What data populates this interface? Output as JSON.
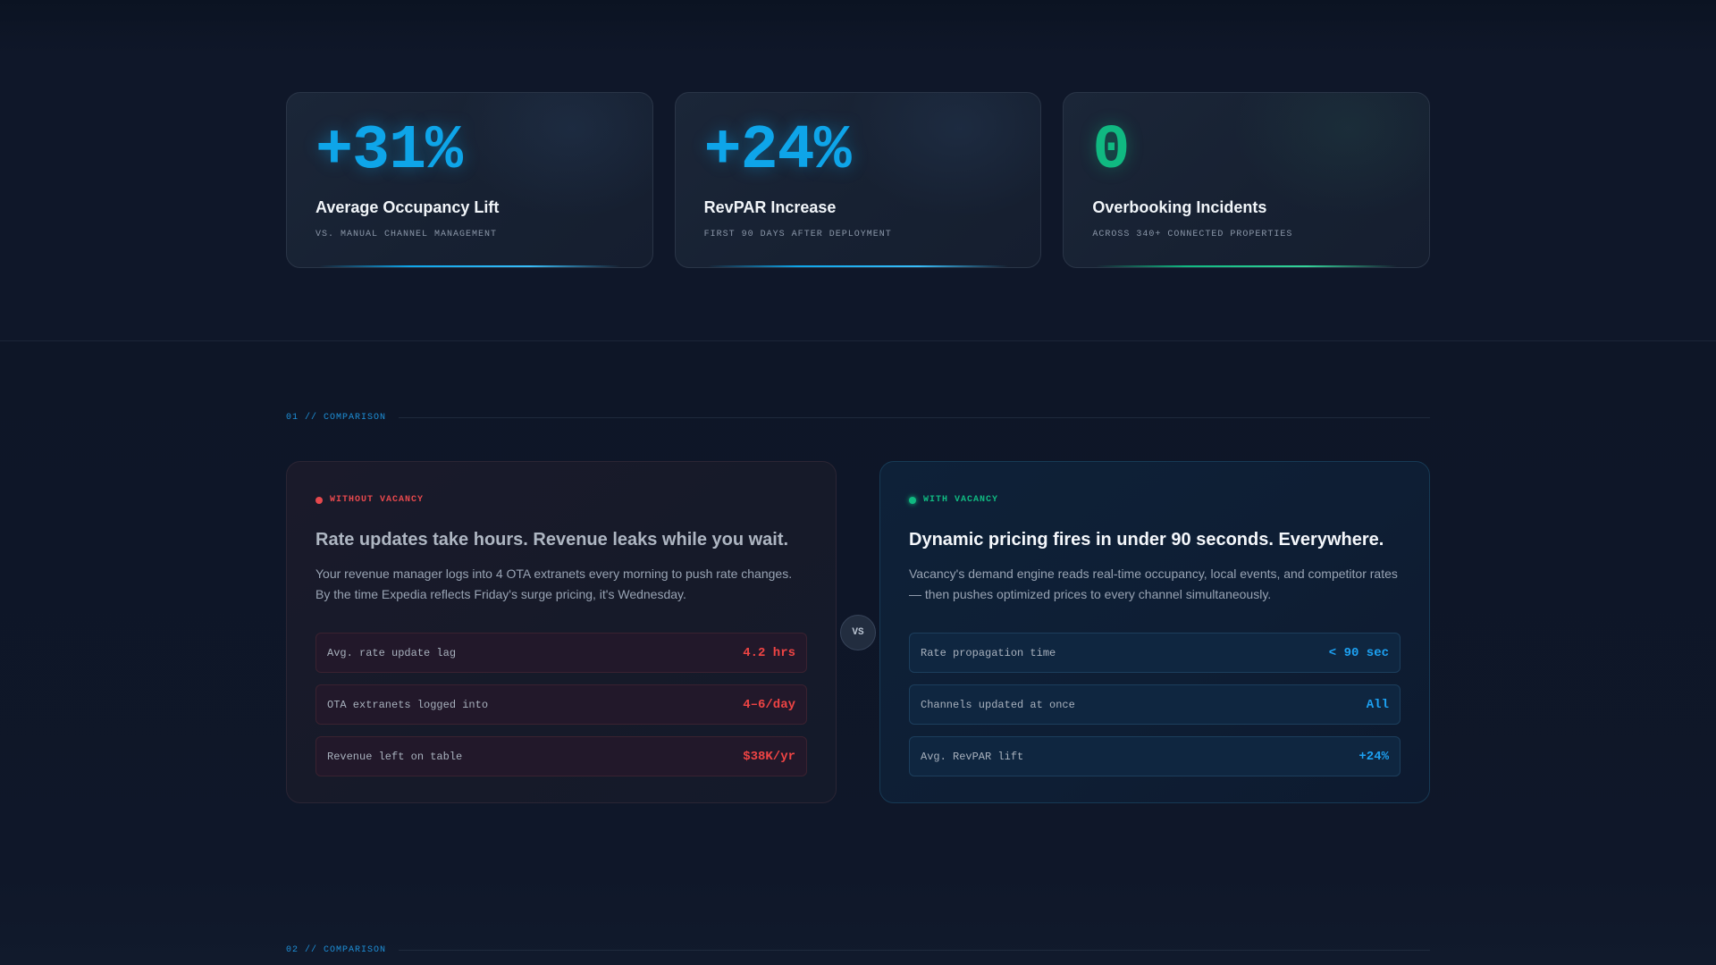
{
  "stats": [
    {
      "value": "+31%",
      "label": "Average Occupancy Lift",
      "sub": "VS. MANUAL CHANNEL MANAGEMENT",
      "accent": "#0ea5e9"
    },
    {
      "value": "+24%",
      "label": "RevPAR Increase",
      "sub": "FIRST 90 DAYS AFTER DEPLOYMENT",
      "accent": "#0ea5e9"
    },
    {
      "value": "0",
      "label": "Overbooking Incidents",
      "sub": "ACROSS 340+ CONNECTED PROPERTIES",
      "accent": "#10b981"
    }
  ],
  "sections": [
    {
      "label": "01 // COMPARISON"
    },
    {
      "label": "02 // COMPARISON"
    }
  ],
  "comparison": {
    "vs_label": "VS",
    "without": {
      "tag": "WITHOUT VACANCY",
      "title": "Rate updates take hours. Revenue leaks while you wait.",
      "body": "Your revenue manager logs into 4 OTA extranets every morning to push rate changes. By the time Expedia reflects Friday's surge pricing, it's Wednesday.",
      "rows": [
        {
          "key": "Avg. rate update lag",
          "value": "4.2 hrs"
        },
        {
          "key": "OTA extranets logged into",
          "value": "4–6/day"
        },
        {
          "key": "Revenue left on table",
          "value": "$38K/yr"
        }
      ]
    },
    "with": {
      "tag": "WITH VACANCY",
      "title": "Dynamic pricing fires in under 90 seconds. Everywhere.",
      "body": "Vacancy's demand engine reads real-time occupancy, local events, and competitor rates — then pushes optimized prices to every channel simultaneously.",
      "rows": [
        {
          "key": "Rate propagation time",
          "value": "< 90 sec"
        },
        {
          "key": "Channels updated at once",
          "value": "All"
        },
        {
          "key": "Avg. RevPAR lift",
          "value": "+24%"
        }
      ]
    }
  }
}
